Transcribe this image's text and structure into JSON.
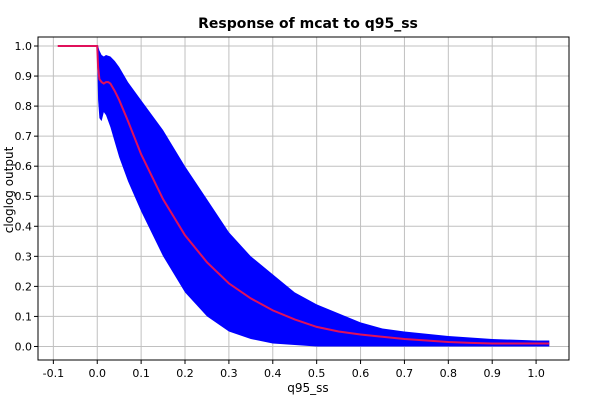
{
  "chart_data": {
    "type": "line",
    "title": "Response of mcat to q95_ss",
    "xlabel": "q95_ss",
    "ylabel": "cloglog output",
    "xlim": [
      -0.135,
      1.075
    ],
    "ylim": [
      -0.045,
      1.03
    ],
    "xticks": [
      "-0.1",
      "0.0",
      "0.1",
      "0.2",
      "0.3",
      "0.4",
      "0.5",
      "0.6",
      "0.7",
      "0.8",
      "0.9",
      "1.0"
    ],
    "yticks": [
      "0.0",
      "0.1",
      "0.2",
      "0.3",
      "0.4",
      "0.5",
      "0.6",
      "0.7",
      "0.8",
      "0.9",
      "1.0"
    ],
    "grid": true,
    "series": [
      {
        "kind": "mean-line",
        "color": "#e0105a",
        "x": [
          -0.09,
          0.0,
          0.002,
          0.005,
          0.01,
          0.015,
          0.02,
          0.025,
          0.03,
          0.04,
          0.05,
          0.07,
          0.1,
          0.15,
          0.2,
          0.25,
          0.3,
          0.35,
          0.4,
          0.45,
          0.5,
          0.55,
          0.6,
          0.7,
          0.8,
          0.85,
          0.9,
          1.0,
          1.03
        ],
        "y": [
          1.0,
          1.0,
          0.93,
          0.89,
          0.88,
          0.875,
          0.88,
          0.88,
          0.875,
          0.85,
          0.82,
          0.75,
          0.64,
          0.49,
          0.37,
          0.28,
          0.21,
          0.16,
          0.12,
          0.09,
          0.065,
          0.05,
          0.04,
          0.025,
          0.015,
          0.012,
          0.01,
          0.01,
          0.01
        ]
      },
      {
        "kind": "band",
        "color": "#0000ff",
        "x": [
          0.0,
          0.002,
          0.005,
          0.01,
          0.015,
          0.02,
          0.03,
          0.04,
          0.05,
          0.07,
          0.1,
          0.15,
          0.2,
          0.25,
          0.3,
          0.35,
          0.4,
          0.45,
          0.5,
          0.55,
          0.6,
          0.65,
          0.7,
          0.8,
          0.9,
          1.0,
          1.03
        ],
        "upper": [
          1.0,
          1.0,
          0.985,
          0.97,
          0.965,
          0.97,
          0.965,
          0.95,
          0.93,
          0.88,
          0.82,
          0.72,
          0.6,
          0.49,
          0.38,
          0.3,
          0.24,
          0.18,
          0.14,
          0.11,
          0.08,
          0.06,
          0.05,
          0.035,
          0.025,
          0.02,
          0.02
        ],
        "lower": [
          0.95,
          0.82,
          0.76,
          0.75,
          0.78,
          0.77,
          0.73,
          0.68,
          0.63,
          0.55,
          0.45,
          0.3,
          0.18,
          0.1,
          0.05,
          0.025,
          0.01,
          0.005,
          0.0,
          0.0,
          0.0,
          0.0,
          0.0,
          0.0,
          0.0,
          0.0,
          0.0
        ]
      }
    ]
  }
}
